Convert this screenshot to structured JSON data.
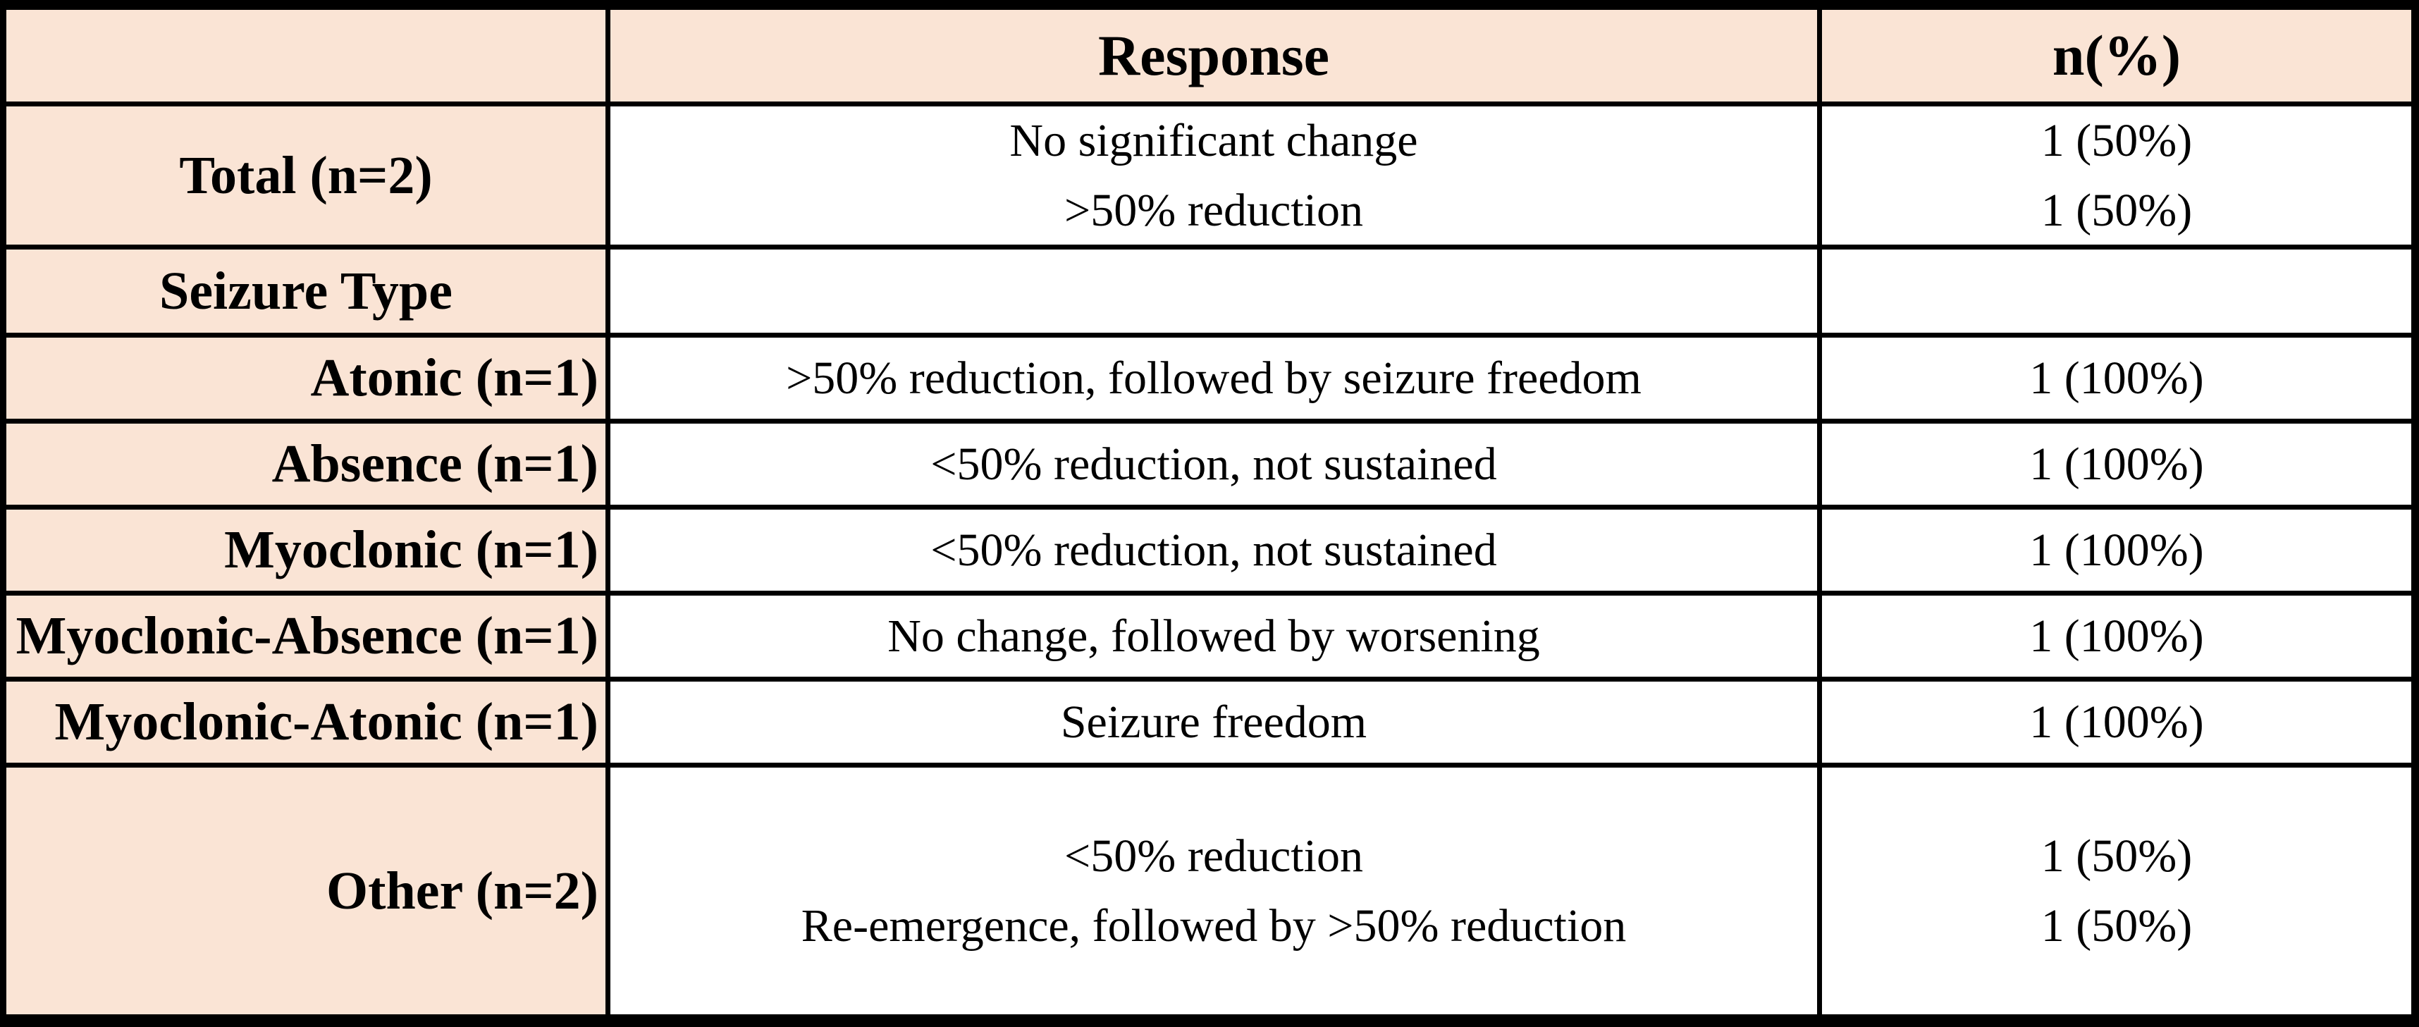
{
  "table": {
    "headers": {
      "row_category": "",
      "response": "Response",
      "n_pct": "n(%)"
    },
    "rows": [
      {
        "label": "Total (n=2)",
        "label_align": "center",
        "response": [
          "No significant change",
          ">50% reduction"
        ],
        "n_pct": [
          "1 (50%)",
          "1 (50%)"
        ]
      },
      {
        "label": "Seizure Type",
        "label_align": "center",
        "response": [],
        "n_pct": []
      },
      {
        "label": "Atonic (n=1)",
        "label_align": "right",
        "response": [
          ">50% reduction, followed by seizure freedom"
        ],
        "n_pct": [
          "1 (100%)"
        ]
      },
      {
        "label": "Absence (n=1)",
        "label_align": "right",
        "response": [
          "<50% reduction, not sustained"
        ],
        "n_pct": [
          "1 (100%)"
        ]
      },
      {
        "label": "Myoclonic (n=1)",
        "label_align": "right",
        "response": [
          "<50% reduction, not sustained"
        ],
        "n_pct": [
          "1 (100%)"
        ]
      },
      {
        "label": "Myoclonic-Absence (n=1)",
        "label_align": "right",
        "response": [
          "No change, followed by worsening"
        ],
        "n_pct": [
          "1 (100%)"
        ]
      },
      {
        "label": "Myoclonic-Atonic (n=1)",
        "label_align": "right",
        "response": [
          "Seizure freedom"
        ],
        "n_pct": [
          "1 (100%)"
        ]
      },
      {
        "label": "Other (n=2)",
        "label_align": "right",
        "response": [
          "<50% reduction",
          "Re-emergence, followed by >50% reduction"
        ],
        "n_pct": [
          "1 (50%)",
          "1 (50%)"
        ]
      }
    ],
    "colors": {
      "header_bg": "#fae4d5",
      "row_label_bg": "#fae4d5",
      "cell_bg": "#ffffff",
      "grid_line": "#000000"
    }
  }
}
